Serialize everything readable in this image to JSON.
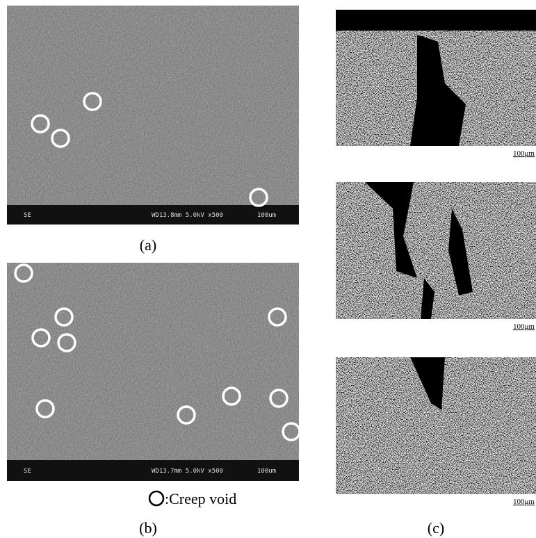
{
  "panel_a": {
    "label": "(a)",
    "detector": "SE",
    "settings": "WD13.8mm  5.0kV x500",
    "scale": "100um"
  },
  "panel_b": {
    "label": "(b)",
    "detector": "SE",
    "settings": "WD13.7mm  5.0kV x500",
    "scale": "100um"
  },
  "legend": {
    "label": ":Creep void"
  },
  "panel_c": {
    "label": "(c)",
    "scale_labels": [
      "100μm",
      "100μm",
      "100μm"
    ]
  }
}
